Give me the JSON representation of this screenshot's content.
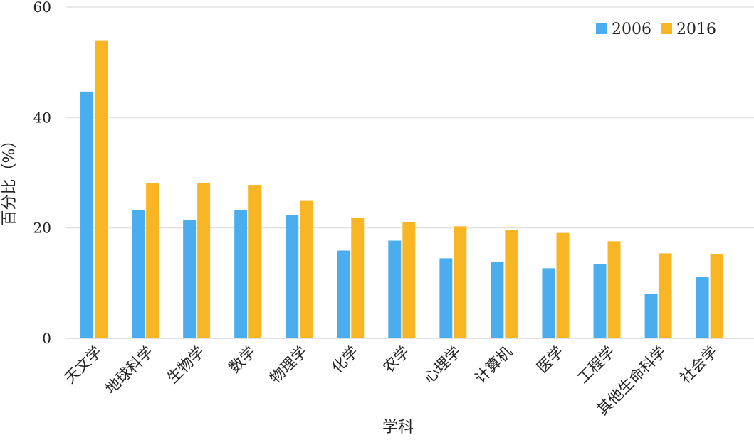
{
  "chart_data": {
    "type": "bar",
    "title": "",
    "xlabel": "学科",
    "ylabel": "百分比（%）",
    "ylim": [
      0,
      60
    ],
    "yticks": [
      0,
      20,
      40,
      60
    ],
    "grid": true,
    "legend_position": "top-right",
    "categories": [
      "天文学",
      "地球科学",
      "生物学",
      "数学",
      "物理学",
      "化学",
      "农学",
      "心理学",
      "计算机",
      "医学",
      "工程学",
      "其他生命科学",
      "社会学"
    ],
    "series": [
      {
        "name": "2006",
        "color": "#4aaeee",
        "values": [
          44.7,
          23.3,
          21.4,
          23.3,
          22.4,
          15.9,
          17.7,
          14.5,
          13.9,
          12.7,
          13.5,
          8.0,
          11.2
        ]
      },
      {
        "name": "2016",
        "color": "#f9b624",
        "values": [
          54.0,
          28.2,
          28.1,
          27.8,
          24.9,
          21.9,
          21.0,
          20.3,
          19.6,
          19.1,
          17.6,
          15.4,
          15.3
        ]
      }
    ]
  }
}
